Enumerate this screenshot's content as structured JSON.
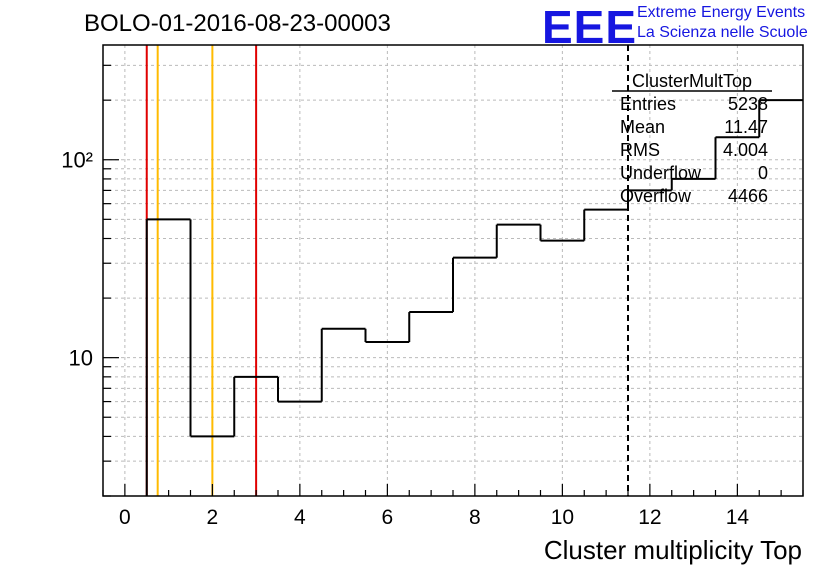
{
  "header": {
    "title": "BOLO-01-2016-08-23-00003",
    "logo_text": "EEE",
    "logo_line1": "Extreme Energy Events",
    "logo_line2": "La Scienza nelle Scuole",
    "logo_color": "#1616e0"
  },
  "stats_box": {
    "title": "ClusterMultTop",
    "rows": [
      {
        "label": "Entries",
        "value": "5238"
      },
      {
        "label": "Mean",
        "value": "11.47"
      },
      {
        "label": "RMS",
        "value": "4.004"
      },
      {
        "label": "Underflow",
        "value": "0"
      },
      {
        "label": "Overflow",
        "value": "4466"
      }
    ]
  },
  "chart_data": {
    "type": "histogram",
    "title": "BOLO-01-2016-08-23-00003",
    "xlabel": "Cluster multiplicity Top",
    "ylabel": "",
    "x_scale": "linear",
    "y_scale": "log",
    "xlim": [
      -0.5,
      15.5
    ],
    "ylim": [
      2,
      380
    ],
    "grid": true,
    "x_ticks": [
      0,
      2,
      4,
      6,
      8,
      10,
      12,
      14
    ],
    "y_ticks": [
      {
        "value": 10,
        "label": "10"
      },
      {
        "value": 100,
        "label": "10²"
      }
    ],
    "bin_width": 1,
    "bins": [
      {
        "x0": 0.5,
        "x1": 1.5,
        "count": 50
      },
      {
        "x0": 1.5,
        "x1": 2.5,
        "count": 4
      },
      {
        "x0": 2.5,
        "x1": 3.5,
        "count": 8
      },
      {
        "x0": 3.5,
        "x1": 4.5,
        "count": 6
      },
      {
        "x0": 4.5,
        "x1": 5.5,
        "count": 14
      },
      {
        "x0": 5.5,
        "x1": 6.5,
        "count": 12
      },
      {
        "x0": 6.5,
        "x1": 7.5,
        "count": 17
      },
      {
        "x0": 7.5,
        "x1": 8.5,
        "count": 32
      },
      {
        "x0": 8.5,
        "x1": 9.5,
        "count": 47
      },
      {
        "x0": 9.5,
        "x1": 10.5,
        "count": 39
      },
      {
        "x0": 10.5,
        "x1": 11.5,
        "count": 56
      },
      {
        "x0": 11.5,
        "x1": 12.5,
        "count": 70
      },
      {
        "x0": 12.5,
        "x1": 13.5,
        "count": 80
      },
      {
        "x0": 13.5,
        "x1": 14.5,
        "count": 130
      },
      {
        "x0": 14.5,
        "x1": 15.5,
        "count": 200
      }
    ],
    "vertical_lines": [
      {
        "x": 0.5,
        "color": "#e00000",
        "style": "solid"
      },
      {
        "x": 0.75,
        "color": "#ffbb00",
        "style": "solid"
      },
      {
        "x": 2.0,
        "color": "#ffbb00",
        "style": "solid"
      },
      {
        "x": 3.0,
        "color": "#e00000",
        "style": "solid"
      },
      {
        "x": 11.5,
        "color": "#000000",
        "style": "dashed"
      }
    ],
    "colors": {
      "histogram": "#000000",
      "grid": "#bbbbbb"
    }
  }
}
